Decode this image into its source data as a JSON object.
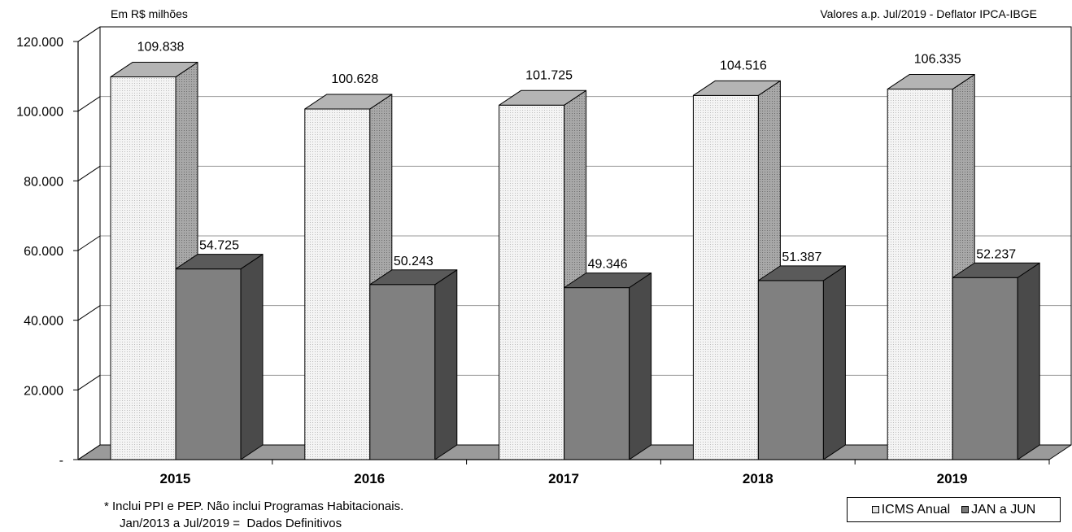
{
  "chart_data": {
    "type": "bar",
    "subtitle_left": "Em R$ milhões",
    "subtitle_right": "Valores a.p. Jul/2019 - Deflator IPCA-IBGE",
    "categories": [
      "2015",
      "2016",
      "2017",
      "2018",
      "2019"
    ],
    "series": [
      {
        "name": "ICMS Anual",
        "values": [
          109838,
          100628,
          101725,
          104516,
          106335
        ],
        "labels": [
          "109.838",
          "100.628",
          "101.725",
          "104.516",
          "106.335"
        ]
      },
      {
        "name": "JAN a JUN",
        "values": [
          54725,
          50243,
          49346,
          51387,
          52237
        ],
        "labels": [
          "54.725",
          "50.243",
          "49.346",
          "51.387",
          "52.237"
        ]
      }
    ],
    "yticks": [
      0,
      20000,
      40000,
      60000,
      80000,
      100000,
      120000
    ],
    "ytick_labels": [
      "-",
      "20.000",
      "40.000",
      "60.000",
      "80.000",
      "100.000",
      "120.000"
    ],
    "ylim": [
      0,
      120000
    ],
    "grid": true,
    "legend_position": "bottom-right",
    "colors": {
      "icms_front": "#ececec",
      "icms_side": "#9a9a9a",
      "icms_top": "#b4b4b4",
      "jan_front": "#808080",
      "jan_side": "#4a4a4a",
      "jan_top": "#5a5a5a"
    }
  },
  "footnote": {
    "line1": "* Inclui PPI e PEP. Não inclui Programas Habitacionais.",
    "line2": "Jan/2013 a Jul/2019 =  Dados Definitivos"
  },
  "legend": {
    "item1": "ICMS Anual",
    "item2": "JAN a JUN"
  }
}
